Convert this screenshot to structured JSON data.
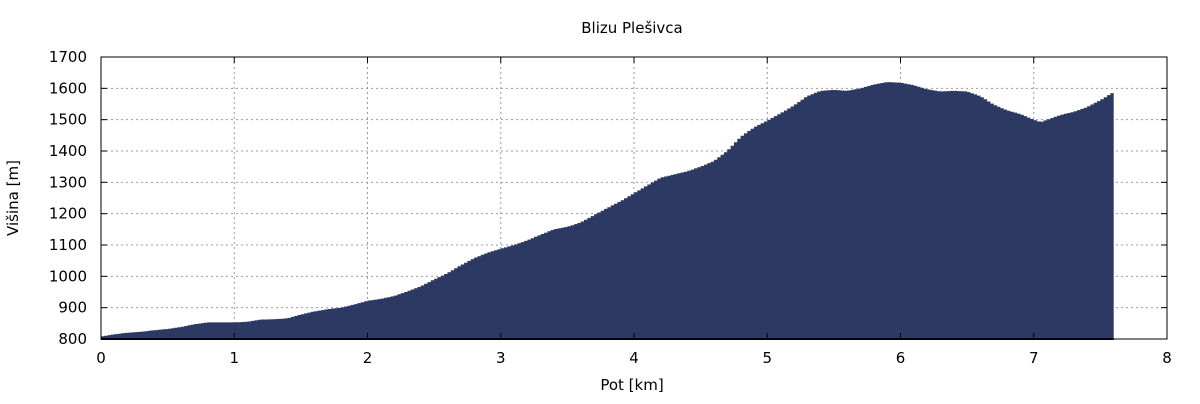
{
  "chart_data": {
    "type": "area",
    "title": "Blizu Plešivca",
    "xlabel": "Pot [km]",
    "ylabel": "Višina [m]",
    "xlim": [
      0,
      8
    ],
    "ylim": [
      800,
      1700
    ],
    "xticks": [
      "0",
      "1",
      "2",
      "3",
      "4",
      "5",
      "6",
      "7",
      "8"
    ],
    "yticks": [
      "800",
      "900",
      "1000",
      "1100",
      "1200",
      "1300",
      "1400",
      "1500",
      "1600",
      "1700"
    ],
    "grid": true,
    "fill_color": "#2c3a63",
    "x": [
      0,
      0.1,
      0.2,
      0.3,
      0.4,
      0.5,
      0.6,
      0.7,
      0.8,
      0.9,
      1.0,
      1.1,
      1.2,
      1.3,
      1.4,
      1.5,
      1.6,
      1.7,
      1.8,
      1.9,
      2.0,
      2.1,
      2.2,
      2.3,
      2.4,
      2.5,
      2.6,
      2.7,
      2.8,
      2.9,
      3.0,
      3.1,
      3.2,
      3.3,
      3.4,
      3.5,
      3.6,
      3.7,
      3.8,
      3.9,
      4.0,
      4.1,
      4.2,
      4.3,
      4.4,
      4.5,
      4.6,
      4.7,
      4.8,
      4.9,
      5.0,
      5.1,
      5.2,
      5.3,
      5.4,
      5.5,
      5.6,
      5.7,
      5.8,
      5.9,
      6.0,
      6.1,
      6.2,
      6.3,
      6.4,
      6.5,
      6.6,
      6.7,
      6.8,
      6.9,
      7.0,
      7.05,
      7.2,
      7.3,
      7.4,
      7.5,
      7.6
    ],
    "y": [
      808,
      815,
      820,
      823,
      828,
      832,
      838,
      847,
      853,
      853,
      853,
      855,
      862,
      863,
      866,
      878,
      888,
      895,
      900,
      910,
      922,
      928,
      937,
      952,
      968,
      990,
      1010,
      1035,
      1058,
      1075,
      1088,
      1100,
      1115,
      1133,
      1150,
      1158,
      1172,
      1195,
      1218,
      1240,
      1265,
      1290,
      1315,
      1325,
      1335,
      1350,
      1368,
      1400,
      1445,
      1475,
      1497,
      1520,
      1545,
      1575,
      1592,
      1595,
      1592,
      1600,
      1612,
      1620,
      1618,
      1610,
      1597,
      1590,
      1592,
      1590,
      1575,
      1548,
      1530,
      1518,
      1500,
      1492,
      1515,
      1525,
      1540,
      1562,
      1588
    ]
  }
}
